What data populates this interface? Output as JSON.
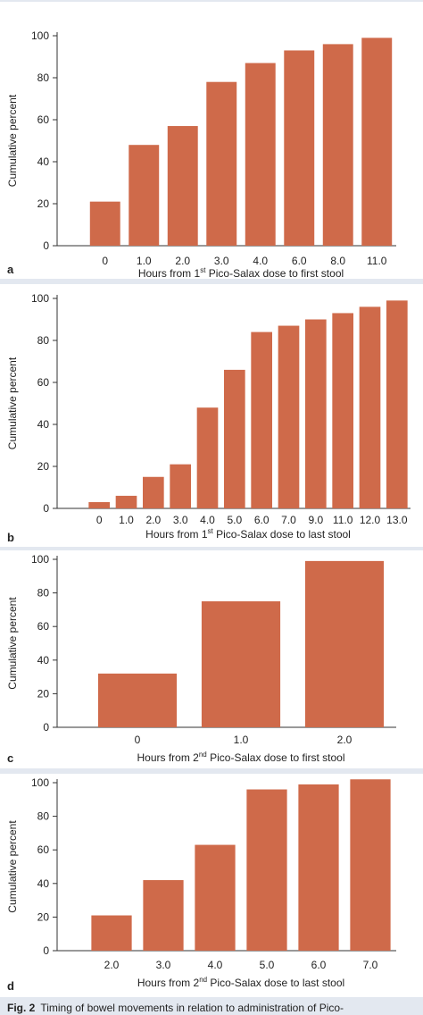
{
  "figure": {
    "caption_label": "Fig. 2",
    "caption_text": "Timing of bowel movements in relation to administration of Pico-"
  },
  "colors": {
    "bar": "#cf6a4a",
    "axis": "#333333",
    "panel_bg": "#ffffff",
    "frame_bg": "#e3e8f0"
  },
  "chart_data": [
    {
      "panel": "a",
      "type": "bar",
      "ylabel": "Cumulative percent",
      "xlabel_prefix": "Hours from 1",
      "xlabel_sup": "st",
      "xlabel_suffix": " Pico-Salax dose to first stool",
      "ylim": [
        0,
        100
      ],
      "yticks": [
        0,
        20,
        40,
        60,
        80,
        100
      ],
      "categories": [
        "0",
        "1.0",
        "2.0",
        "3.0",
        "4.0",
        "6.0",
        "8.0",
        "11.0"
      ],
      "values": [
        21,
        48,
        57,
        78,
        87,
        93,
        96,
        99
      ]
    },
    {
      "panel": "b",
      "type": "bar",
      "ylabel": "Cumulative percent",
      "xlabel_prefix": "Hours from 1",
      "xlabel_sup": "st",
      "xlabel_suffix": " Pico-Salax dose to last stool",
      "ylim": [
        0,
        100
      ],
      "yticks": [
        0,
        20,
        40,
        60,
        80,
        100
      ],
      "categories": [
        "0",
        "1.0",
        "2.0",
        "3.0",
        "4.0",
        "5.0",
        "6.0",
        "7.0",
        "9.0",
        "11.0",
        "12.0",
        "13.0"
      ],
      "values": [
        3,
        6,
        15,
        21,
        48,
        66,
        84,
        87,
        90,
        93,
        96,
        99
      ]
    },
    {
      "panel": "c",
      "type": "bar",
      "ylabel": "Cumulative percent",
      "xlabel_prefix": "Hours from 2",
      "xlabel_sup": "nd",
      "xlabel_suffix": " Pico-Salax dose to first stool",
      "ylim": [
        0,
        100
      ],
      "yticks": [
        0,
        20,
        40,
        60,
        80,
        100
      ],
      "categories": [
        "0",
        "1.0",
        "2.0"
      ],
      "values": [
        32,
        75,
        99
      ]
    },
    {
      "panel": "d",
      "type": "bar",
      "ylabel": "Cumulative percent",
      "xlabel_prefix": "Hours from 2",
      "xlabel_sup": "nd",
      "xlabel_suffix": " Pico-Salax dose to last stool",
      "ylim": [
        0,
        100
      ],
      "yticks": [
        0,
        20,
        40,
        60,
        80,
        100
      ],
      "categories": [
        "2.0",
        "3.0",
        "4.0",
        "5.0",
        "6.0",
        "7.0"
      ],
      "values": [
        21,
        42,
        63,
        96,
        99,
        102
      ]
    }
  ]
}
